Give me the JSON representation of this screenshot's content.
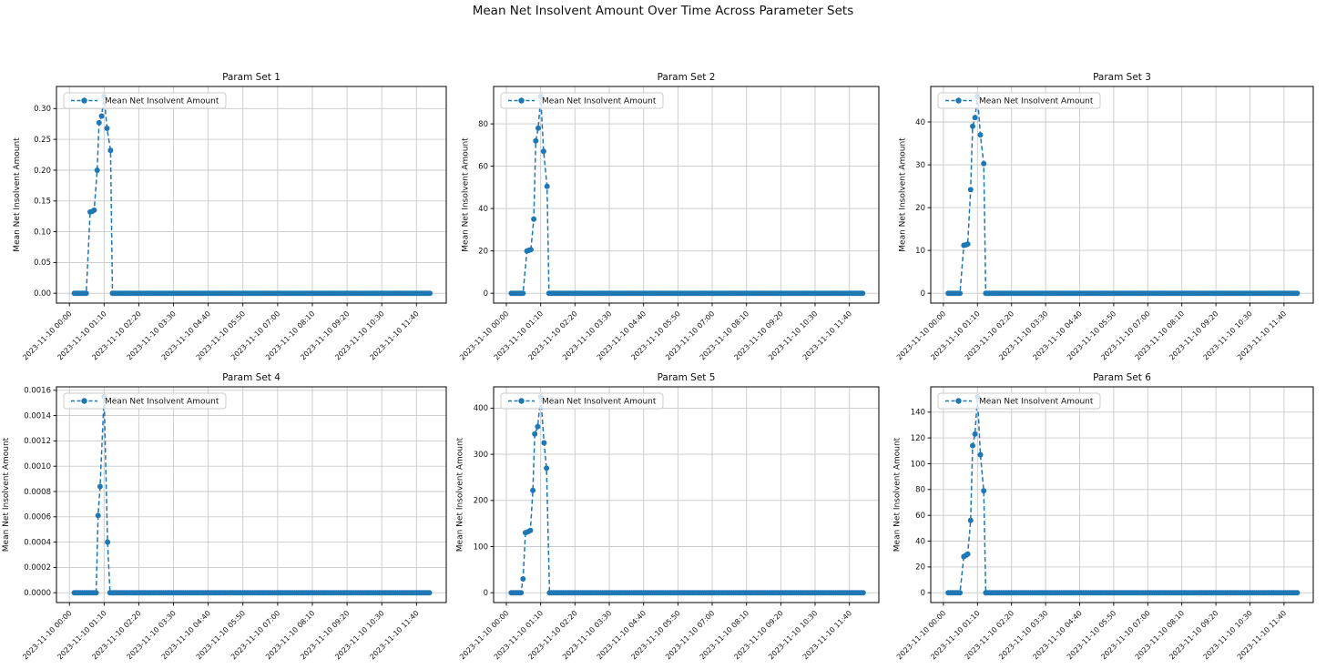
{
  "figure": {
    "title": "Mean Net Insolvent Amount Over Time Across Parameter Sets",
    "rows": 2,
    "cols": 3,
    "background": "#ffffff",
    "accent_color": "#1f77b4",
    "grid_color": "#c9c9c9",
    "spine_color": "#000000",
    "text_color": "#111111"
  },
  "chart_data": [
    {
      "type": "line",
      "title": "Param Set 1",
      "ylabel": "Mean Net Insolvent Amount",
      "legend_label": "Mean Net Insolvent Amount",
      "legend_position": "upper left",
      "grid": true,
      "line_color": "#1f77b4",
      "line_style": "dashed",
      "marker": "circle",
      "x_tick_labels": [
        "2023-11-10 00:00",
        "2023-11-10 01:10",
        "2023-11-10 02:20",
        "2023-11-10 03:30",
        "2023-11-10 04:40",
        "2023-11-10 05:50",
        "2023-11-10 07:00",
        "2023-11-10 08:10",
        "2023-11-10 09:20",
        "2023-11-10 10:30",
        "2023-11-10 11:40"
      ],
      "x_tick_minutes": [
        0,
        70,
        140,
        210,
        280,
        350,
        420,
        490,
        560,
        630,
        700
      ],
      "xlim_minutes": [
        -26,
        760
      ],
      "y_ticks": [
        0.0,
        0.05,
        0.1,
        0.15,
        0.2,
        0.25,
        0.3
      ],
      "y_tick_decimals": 2,
      "ylim": [
        -0.016,
        0.336
      ],
      "points_nonzero": [
        [
          42,
          0.132
        ],
        [
          46,
          0.133
        ],
        [
          50,
          0.135
        ],
        [
          56,
          0.2
        ],
        [
          60,
          0.277
        ],
        [
          65,
          0.288
        ],
        [
          70,
          0.32
        ],
        [
          76,
          0.268
        ],
        [
          83,
          0.232
        ]
      ],
      "zero_ranges_minutes": [
        [
          10,
          36
        ],
        [
          87,
          729
        ]
      ],
      "zero_step_minutes": 4
    },
    {
      "type": "line",
      "title": "Param Set 2",
      "ylabel": "Mean Net Insolvent Amount",
      "legend_label": "Mean Net Insolvent Amount",
      "legend_position": "upper left",
      "grid": true,
      "line_color": "#1f77b4",
      "line_style": "dashed",
      "marker": "circle",
      "x_tick_labels": [
        "2023-11-10 00:00",
        "2023-11-10 01:10",
        "2023-11-10 02:20",
        "2023-11-10 03:30",
        "2023-11-10 04:40",
        "2023-11-10 05:50",
        "2023-11-10 07:00",
        "2023-11-10 08:10",
        "2023-11-10 09:20",
        "2023-11-10 10:30",
        "2023-11-10 11:40"
      ],
      "x_tick_minutes": [
        0,
        70,
        140,
        210,
        280,
        350,
        420,
        490,
        560,
        630,
        700
      ],
      "xlim_minutes": [
        -26,
        760
      ],
      "y_ticks": [
        0,
        20,
        40,
        60,
        80
      ],
      "y_tick_decimals": 0,
      "ylim": [
        -4.65,
        97.65
      ],
      "points_nonzero": [
        [
          42,
          20.0
        ],
        [
          46,
          20.3
        ],
        [
          50,
          20.6
        ],
        [
          56,
          35.0
        ],
        [
          60,
          72.0
        ],
        [
          65,
          78.0
        ],
        [
          70,
          93.0
        ],
        [
          76,
          67.0
        ],
        [
          83,
          50.5
        ]
      ],
      "zero_ranges_minutes": [
        [
          10,
          36
        ],
        [
          87,
          729
        ]
      ],
      "zero_step_minutes": 4
    },
    {
      "type": "line",
      "title": "Param Set 3",
      "ylabel": "Mean Net Insolvent Amount",
      "legend_label": "Mean Net Insolvent Amount",
      "legend_position": "upper left",
      "grid": true,
      "line_color": "#1f77b4",
      "line_style": "dashed",
      "marker": "circle",
      "x_tick_labels": [
        "2023-11-10 00:00",
        "2023-11-10 01:10",
        "2023-11-10 02:20",
        "2023-11-10 03:30",
        "2023-11-10 04:40",
        "2023-11-10 05:50",
        "2023-11-10 07:00",
        "2023-11-10 08:10",
        "2023-11-10 09:20",
        "2023-11-10 10:30",
        "2023-11-10 11:40"
      ],
      "x_tick_minutes": [
        0,
        70,
        140,
        210,
        280,
        350,
        420,
        490,
        560,
        630,
        700
      ],
      "xlim_minutes": [
        -26,
        760
      ],
      "y_ticks": [
        0,
        10,
        20,
        30,
        40
      ],
      "y_tick_decimals": 0,
      "ylim": [
        -2.3,
        48.3
      ],
      "points_nonzero": [
        [
          42,
          11.2
        ],
        [
          46,
          11.3
        ],
        [
          50,
          11.5
        ],
        [
          56,
          24.2
        ],
        [
          60,
          39.0
        ],
        [
          65,
          41.0
        ],
        [
          70,
          46.0
        ],
        [
          76,
          37.0
        ],
        [
          83,
          30.3
        ]
      ],
      "zero_ranges_minutes": [
        [
          10,
          36
        ],
        [
          87,
          729
        ]
      ],
      "zero_step_minutes": 4
    },
    {
      "type": "line",
      "title": "Param Set 4",
      "ylabel": "Mean Net Insolvent Amount",
      "legend_label": "Mean Net Insolvent Amount",
      "legend_position": "upper left",
      "grid": true,
      "line_color": "#1f77b4",
      "line_style": "dashed",
      "marker": "circle",
      "x_tick_labels": [
        "2023-11-10 00:00",
        "2023-11-10 01:10",
        "2023-11-10 02:20",
        "2023-11-10 03:30",
        "2023-11-10 04:40",
        "2023-11-10 05:50",
        "2023-11-10 07:00",
        "2023-11-10 08:10",
        "2023-11-10 09:20",
        "2023-11-10 10:30",
        "2023-11-10 11:40"
      ],
      "x_tick_minutes": [
        0,
        70,
        140,
        210,
        280,
        350,
        420,
        490,
        560,
        630,
        700
      ],
      "xlim_minutes": [
        -26,
        760
      ],
      "y_ticks": [
        0.0,
        0.0002,
        0.0004,
        0.0006,
        0.0008,
        0.001,
        0.0012,
        0.0014,
        0.0016
      ],
      "y_tick_decimals": 4,
      "ylim": [
        -7.75e-05,
        0.0016275
      ],
      "points_nonzero": [
        [
          58,
          0.00061
        ],
        [
          62,
          0.00084
        ],
        [
          70,
          0.00155
        ],
        [
          77,
          0.0004
        ]
      ],
      "zero_ranges_minutes": [
        [
          10,
          54
        ],
        [
          82,
          729
        ]
      ],
      "zero_step_minutes": 4
    },
    {
      "type": "line",
      "title": "Param Set 5",
      "ylabel": "Mean Net Insolvent Amount",
      "legend_label": "Mean Net Insolvent Amount",
      "legend_position": "upper left",
      "grid": true,
      "line_color": "#1f77b4",
      "line_style": "dashed",
      "marker": "circle",
      "x_tick_labels": [
        "2023-11-10 00:00",
        "2023-11-10 01:10",
        "2023-11-10 02:20",
        "2023-11-10 03:30",
        "2023-11-10 04:40",
        "2023-11-10 05:50",
        "2023-11-10 07:00",
        "2023-11-10 08:10",
        "2023-11-10 09:20",
        "2023-11-10 10:30",
        "2023-11-10 11:40"
      ],
      "x_tick_minutes": [
        0,
        70,
        140,
        210,
        280,
        350,
        420,
        490,
        560,
        630,
        700
      ],
      "xlim_minutes": [
        -26,
        760
      ],
      "y_ticks": [
        0,
        100,
        200,
        300,
        400
      ],
      "y_tick_decimals": 0,
      "ylim": [
        -21.25,
        446.25
      ],
      "points_nonzero": [
        [
          34,
          30
        ],
        [
          39,
          130
        ],
        [
          44,
          132
        ],
        [
          49,
          135
        ],
        [
          54,
          222
        ],
        [
          58,
          344
        ],
        [
          64,
          360
        ],
        [
          70,
          425
        ],
        [
          77,
          325
        ],
        [
          82,
          270
        ]
      ],
      "zero_ranges_minutes": [
        [
          10,
          30
        ],
        [
          88,
          729
        ]
      ],
      "zero_step_minutes": 4
    },
    {
      "type": "line",
      "title": "Param Set 6",
      "ylabel": "Mean Net Insolvent Amount",
      "legend_label": "Mean Net Insolvent Amount",
      "legend_position": "upper left",
      "grid": true,
      "line_color": "#1f77b4",
      "line_style": "dashed",
      "marker": "circle",
      "x_tick_labels": [
        "2023-11-10 00:00",
        "2023-11-10 01:10",
        "2023-11-10 02:20",
        "2023-11-10 03:30",
        "2023-11-10 04:40",
        "2023-11-10 05:50",
        "2023-11-10 07:00",
        "2023-11-10 08:10",
        "2023-11-10 09:20",
        "2023-11-10 10:30",
        "2023-11-10 11:40"
      ],
      "x_tick_minutes": [
        0,
        70,
        140,
        210,
        280,
        350,
        420,
        490,
        560,
        630,
        700
      ],
      "xlim_minutes": [
        -26,
        760
      ],
      "y_ticks": [
        0,
        20,
        40,
        60,
        80,
        100,
        120,
        140
      ],
      "y_tick_decimals": 0,
      "ylim": [
        -7.6,
        159.6
      ],
      "points_nonzero": [
        [
          42,
          28
        ],
        [
          46,
          29
        ],
        [
          50,
          30
        ],
        [
          56,
          56
        ],
        [
          60,
          114
        ],
        [
          65,
          123
        ],
        [
          70,
          152
        ],
        [
          76,
          107
        ],
        [
          83,
          79
        ]
      ],
      "zero_ranges_minutes": [
        [
          10,
          36
        ],
        [
          87,
          729
        ]
      ],
      "zero_step_minutes": 4
    }
  ]
}
